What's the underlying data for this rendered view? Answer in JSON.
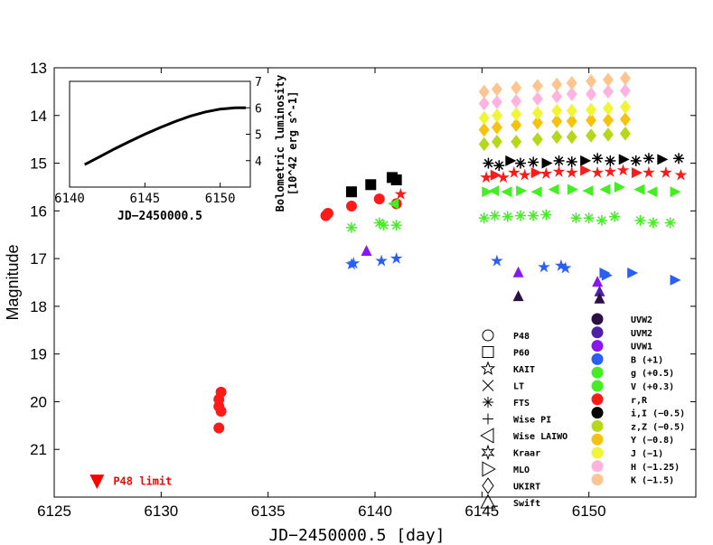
{
  "chart_data": [
    {
      "type": "scatter",
      "title": "",
      "xlabel": "JD−2450000.5 [day]",
      "ylabel": "Magnitude",
      "xlim": [
        6125,
        6155
      ],
      "ylim": [
        22,
        13
      ],
      "xticks": [
        6125,
        6130,
        6135,
        6140,
        6145,
        6150
      ],
      "yticks": [
        13,
        14,
        15,
        16,
        17,
        18,
        19,
        20,
        21
      ],
      "limit_label": "P48 limit",
      "limit_point": {
        "x": 6127.0,
        "y": 21.65,
        "color": "#ff0000"
      },
      "series": [
        {
          "name": "r,R",
          "color": "#ff1a1a",
          "points": [
            [
              6132.8,
              19.8
            ],
            [
              6132.7,
              19.95
            ],
            [
              6132.7,
              20.1
            ],
            [
              6132.8,
              20.2
            ],
            [
              6132.7,
              20.55
            ],
            [
              6137.7,
              16.1
            ],
            [
              6137.8,
              16.05
            ],
            [
              6138.9,
              15.9
            ],
            [
              6140.2,
              15.75
            ],
            [
              6141.0,
              15.85
            ],
            [
              6141.2,
              15.65
            ],
            [
              6145.2,
              15.3
            ],
            [
              6145.6,
              15.25
            ],
            [
              6146.0,
              15.3
            ],
            [
              6146.5,
              15.2
            ],
            [
              6147.0,
              15.25
            ],
            [
              6147.5,
              15.2
            ],
            [
              6148.0,
              15.22
            ],
            [
              6148.6,
              15.18
            ],
            [
              6149.2,
              15.2
            ],
            [
              6149.8,
              15.15
            ],
            [
              6150.4,
              15.2
            ],
            [
              6151.0,
              15.18
            ],
            [
              6151.6,
              15.15
            ],
            [
              6152.2,
              15.2
            ],
            [
              6152.8,
              15.2
            ],
            [
              6153.6,
              15.2
            ],
            [
              6154.3,
              15.25
            ]
          ]
        },
        {
          "name": "i,I (-0.5)",
          "color": "#000000",
          "points": [
            [
              6138.9,
              15.6
            ],
            [
              6139.8,
              15.45
            ],
            [
              6140.8,
              15.3
            ],
            [
              6141.0,
              15.35
            ],
            [
              6145.3,
              15.0
            ],
            [
              6145.8,
              15.05
            ],
            [
              6146.3,
              14.95
            ],
            [
              6146.8,
              15.0
            ],
            [
              6147.4,
              14.98
            ],
            [
              6148.0,
              15.0
            ],
            [
              6148.6,
              14.95
            ],
            [
              6149.2,
              14.97
            ],
            [
              6149.8,
              14.95
            ],
            [
              6150.4,
              14.9
            ],
            [
              6151.0,
              14.95
            ],
            [
              6151.6,
              14.92
            ],
            [
              6152.2,
              14.95
            ],
            [
              6152.8,
              14.9
            ],
            [
              6153.4,
              14.92
            ],
            [
              6154.2,
              14.9
            ]
          ]
        },
        {
          "name": "V (+0.3)",
          "color": "#44ee22",
          "points": [
            [
              6138.9,
              16.35
            ],
            [
              6140.2,
              16.25
            ],
            [
              6140.4,
              16.3
            ],
            [
              6141.0,
              16.3
            ],
            [
              6145.1,
              16.15
            ],
            [
              6145.6,
              16.1
            ],
            [
              6146.2,
              16.12
            ],
            [
              6146.8,
              16.1
            ],
            [
              6147.4,
              16.1
            ],
            [
              6148.0,
              16.08
            ],
            [
              6149.4,
              16.15
            ],
            [
              6150.0,
              16.15
            ],
            [
              6150.6,
              16.2
            ],
            [
              6151.2,
              16.12
            ],
            [
              6152.4,
              16.2
            ],
            [
              6153.0,
              16.25
            ],
            [
              6153.8,
              16.25
            ]
          ]
        },
        {
          "name": "g (+0.5)",
          "color": "#44ee22",
          "points": [
            [
              6140.9,
              15.85
            ],
            [
              6145.2,
              15.6
            ],
            [
              6145.6,
              15.58
            ],
            [
              6146.2,
              15.6
            ],
            [
              6146.8,
              15.58
            ],
            [
              6147.6,
              15.6
            ],
            [
              6148.4,
              15.55
            ],
            [
              6149.2,
              15.55
            ],
            [
              6150.0,
              15.58
            ],
            [
              6150.8,
              15.55
            ],
            [
              6151.4,
              15.5
            ],
            [
              6152.4,
              15.55
            ],
            [
              6153.0,
              15.6
            ],
            [
              6154.0,
              15.6
            ]
          ]
        },
        {
          "name": "B (+1)",
          "color": "#2a5ff5",
          "points": [
            [
              6138.9,
              17.12
            ],
            [
              6139.0,
              17.1
            ],
            [
              6140.3,
              17.05
            ],
            [
              6141.0,
              17.0
            ],
            [
              6145.7,
              17.05
            ],
            [
              6147.9,
              17.18
            ],
            [
              6148.7,
              17.15
            ],
            [
              6148.9,
              17.2
            ],
            [
              6150.7,
              17.3
            ],
            [
              6150.8,
              17.35
            ],
            [
              6152.0,
              17.3
            ],
            [
              6154.0,
              17.45
            ]
          ]
        },
        {
          "name": "UVW1",
          "color": "#8a17ee",
          "points": [
            [
              6139.6,
              16.85
            ],
            [
              6146.7,
              17.3
            ],
            [
              6150.4,
              17.5
            ]
          ]
        },
        {
          "name": "UVM2",
          "color": "#4f1fa8",
          "points": [
            [
              6150.5,
              17.7
            ]
          ]
        },
        {
          "name": "UVW2",
          "color": "#2b1045",
          "points": [
            [
              6146.7,
              17.8
            ],
            [
              6150.5,
              17.85
            ]
          ]
        },
        {
          "name": "z,Z (-0.5)",
          "color": "#b5d91a",
          "points": [
            [
              6145.1,
              14.6
            ],
            [
              6145.7,
              14.55
            ],
            [
              6146.6,
              14.55
            ],
            [
              6147.6,
              14.5
            ],
            [
              6148.5,
              14.45
            ],
            [
              6149.2,
              14.45
            ],
            [
              6150.1,
              14.42
            ],
            [
              6150.9,
              14.4
            ],
            [
              6151.7,
              14.38
            ]
          ]
        },
        {
          "name": "Y (-0.8)",
          "color": "#f5c20f",
          "points": [
            [
              6145.1,
              14.3
            ],
            [
              6145.7,
              14.25
            ],
            [
              6146.6,
              14.2
            ],
            [
              6147.6,
              14.15
            ],
            [
              6148.5,
              14.12
            ],
            [
              6149.2,
              14.12
            ],
            [
              6150.1,
              14.1
            ],
            [
              6150.9,
              14.1
            ],
            [
              6151.7,
              14.08
            ]
          ]
        },
        {
          "name": "J (-1)",
          "color": "#f0f535",
          "points": [
            [
              6145.1,
              14.05
            ],
            [
              6145.7,
              14.0
            ],
            [
              6146.6,
              13.97
            ],
            [
              6147.6,
              13.95
            ],
            [
              6148.5,
              13.9
            ],
            [
              6149.2,
              13.9
            ],
            [
              6150.1,
              13.88
            ],
            [
              6150.9,
              13.85
            ],
            [
              6151.7,
              13.82
            ]
          ]
        },
        {
          "name": "H (-1.25)",
          "color": "#ffb3de",
          "points": [
            [
              6145.1,
              13.75
            ],
            [
              6145.7,
              13.72
            ],
            [
              6146.6,
              13.7
            ],
            [
              6147.6,
              13.65
            ],
            [
              6148.5,
              13.6
            ],
            [
              6149.2,
              13.55
            ],
            [
              6150.1,
              13.55
            ],
            [
              6150.9,
              13.5
            ],
            [
              6151.7,
              13.48
            ]
          ]
        },
        {
          "name": "K (-1.5)",
          "color": "#ffc590",
          "points": [
            [
              6145.1,
              13.5
            ],
            [
              6145.7,
              13.45
            ],
            [
              6146.6,
              13.42
            ],
            [
              6147.6,
              13.38
            ],
            [
              6148.5,
              13.35
            ],
            [
              6149.2,
              13.32
            ],
            [
              6150.1,
              13.28
            ],
            [
              6150.9,
              13.25
            ],
            [
              6151.7,
              13.22
            ]
          ]
        }
      ],
      "legend_instruments": [
        {
          "label": "P48",
          "symbol": "circle"
        },
        {
          "label": "P60",
          "symbol": "square"
        },
        {
          "label": "KAIT",
          "symbol": "star5"
        },
        {
          "label": "LT",
          "symbol": "x"
        },
        {
          "label": "FTS",
          "symbol": "asterisk"
        },
        {
          "label": "Wise PI",
          "symbol": "plus"
        },
        {
          "label": "Wise LAIWO",
          "symbol": "tri-left"
        },
        {
          "label": "Kraar",
          "symbol": "star6"
        },
        {
          "label": "MLO",
          "symbol": "tri-right"
        },
        {
          "label": "UKIRT",
          "symbol": "diamond"
        },
        {
          "label": "Swift",
          "symbol": "tri-up"
        }
      ],
      "legend_bands": [
        {
          "label": "UVW2",
          "color": "#2b1045"
        },
        {
          "label": "UVM2",
          "color": "#4f1fa8"
        },
        {
          "label": "UVW1",
          "color": "#8a17ee"
        },
        {
          "label": "B (+1)",
          "color": "#2a5ff5"
        },
        {
          "label": "g (+0.5)",
          "color": "#44ee22"
        },
        {
          "label": "V (+0.3)",
          "color": "#44ee22"
        },
        {
          "label": "r,R",
          "color": "#ff1a1a"
        },
        {
          "label": "i,I (−0.5)",
          "color": "#000000"
        },
        {
          "label": "z,Z (−0.5)",
          "color": "#b5d91a"
        },
        {
          "label": "Y (−0.8)",
          "color": "#f5c20f"
        },
        {
          "label": "J (−1)",
          "color": "#f0f535"
        },
        {
          "label": "H (−1.25)",
          "color": "#ffb3de"
        },
        {
          "label": "K (−1.5)",
          "color": "#ffc590"
        }
      ]
    },
    {
      "type": "line",
      "title": "",
      "xlabel": "JD−2450000.5",
      "ylabel": "Bolometric luminosity",
      "ylabel2": "[10^42 erg s^-1]",
      "xlim": [
        6140,
        6152
      ],
      "ylim": [
        3,
        7
      ],
      "xticks": [
        6140,
        6145,
        6150
      ],
      "yticks": [
        4,
        5,
        6,
        7
      ],
      "x": [
        6141,
        6142,
        6143,
        6144,
        6145,
        6146,
        6147,
        6148,
        6149,
        6150,
        6151,
        6151.7
      ],
      "values": [
        3.85,
        4.15,
        4.45,
        4.73,
        5.0,
        5.25,
        5.48,
        5.68,
        5.84,
        5.95,
        6.0,
        6.0
      ]
    }
  ]
}
